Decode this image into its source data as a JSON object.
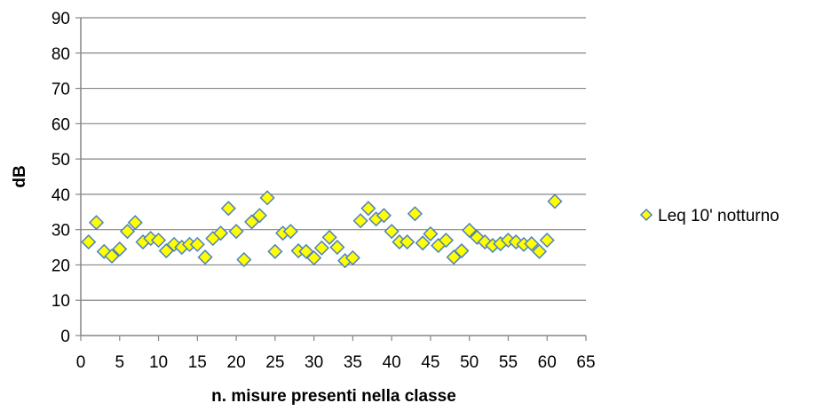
{
  "chart_data": {
    "type": "scatter",
    "title": "",
    "xlabel": "n. misure presenti nella classe",
    "ylabel": "dB",
    "xlim": [
      0,
      65
    ],
    "ylim": [
      0,
      90
    ],
    "xticks": [
      "0",
      "5",
      "10",
      "15",
      "20",
      "25",
      "30",
      "35",
      "40",
      "45",
      "50",
      "55",
      "60",
      "65"
    ],
    "yticks": [
      "0",
      "10",
      "20",
      "30",
      "40",
      "50",
      "60",
      "70",
      "80",
      "90"
    ],
    "grid": "horizontal",
    "legend_position": "right",
    "series": [
      {
        "name": "Leq 10' notturno",
        "marker": "diamond",
        "color": "#ffff00",
        "edge_color": "#4f81bd",
        "points": [
          [
            1,
            26.5
          ],
          [
            2,
            32
          ],
          [
            3,
            23.8
          ],
          [
            4,
            22.5
          ],
          [
            5,
            24.5
          ],
          [
            6,
            29.5
          ],
          [
            7,
            32
          ],
          [
            8,
            26.5
          ],
          [
            9,
            27.5
          ],
          [
            10,
            27
          ],
          [
            11,
            24
          ],
          [
            12,
            25.8
          ],
          [
            13,
            25
          ],
          [
            14,
            25.8
          ],
          [
            15,
            25.8
          ],
          [
            16,
            22.2
          ],
          [
            17,
            27.5
          ],
          [
            18,
            29
          ],
          [
            19,
            36
          ],
          [
            20,
            29.5
          ],
          [
            21,
            21.5
          ],
          [
            22,
            32.2
          ],
          [
            23,
            34
          ],
          [
            24,
            39
          ],
          [
            25,
            23.8
          ],
          [
            26,
            29
          ],
          [
            27,
            29.5
          ],
          [
            28,
            24
          ],
          [
            29,
            23.8
          ],
          [
            30,
            22
          ],
          [
            31,
            24.8
          ],
          [
            32,
            27.8
          ],
          [
            33,
            25
          ],
          [
            34,
            21.2
          ],
          [
            35,
            22
          ],
          [
            36,
            32.5
          ],
          [
            37,
            36
          ],
          [
            38,
            33
          ],
          [
            39,
            34
          ],
          [
            40,
            29.5
          ],
          [
            41,
            26.5
          ],
          [
            42,
            26.5
          ],
          [
            43,
            34.5
          ],
          [
            44,
            26.2
          ],
          [
            45,
            28.8
          ],
          [
            46,
            25.5
          ],
          [
            47,
            27
          ],
          [
            48,
            22.2
          ],
          [
            49,
            24
          ],
          [
            50,
            29.8
          ],
          [
            51,
            27.8
          ],
          [
            52,
            26.5
          ],
          [
            53,
            25.5
          ],
          [
            54,
            26
          ],
          [
            55,
            27
          ],
          [
            56,
            26.5
          ],
          [
            57,
            25.8
          ],
          [
            58,
            26
          ],
          [
            59,
            23.8
          ],
          [
            60,
            27
          ],
          [
            61,
            38
          ]
        ]
      }
    ]
  }
}
